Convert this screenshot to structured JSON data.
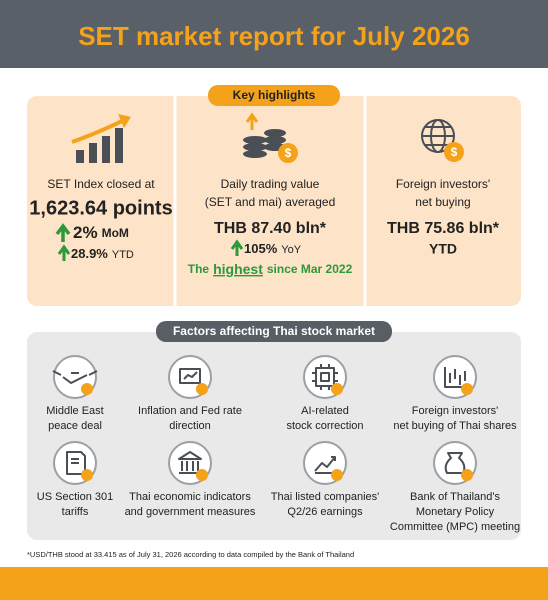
{
  "header": {
    "title": "SET market report for July 2026"
  },
  "highlights": {
    "label": "Key highlights",
    "items": [
      {
        "lines": [
          "SET Index closed at"
        ],
        "value": "1,623.64 points",
        "changes": [
          {
            "value": "2%",
            "unit": "MoM"
          },
          {
            "value": "28.9%",
            "unit": "YTD"
          }
        ]
      },
      {
        "lines": [
          "Daily trading value",
          "(SET and mai) averaged"
        ],
        "value": "THB 87.40 bln*",
        "changes": [
          {
            "value": "105%",
            "unit": "YoY"
          }
        ],
        "note": {
          "before": "The",
          "emphasis": "highest",
          "after": "since Mar 2022"
        }
      },
      {
        "lines": [
          "Foreign investors'",
          "net buying"
        ],
        "value": "THB 75.86 bln*",
        "period": "YTD"
      }
    ]
  },
  "factors": {
    "label": "Factors affecting Thai stock market",
    "items": [
      {
        "lines": [
          "Middle East",
          "peace deal"
        ]
      },
      {
        "lines": [
          "Inflation and Fed rate",
          "direction"
        ]
      },
      {
        "lines": [
          "AI-related",
          "stock correction"
        ]
      },
      {
        "lines": [
          "Foreign investors'",
          "net buying of Thai shares"
        ]
      },
      {
        "lines": [
          "US Section 301",
          "tariffs"
        ]
      },
      {
        "lines": [
          "Thai economic indicators",
          "and government measures"
        ]
      },
      {
        "lines": [
          "Thai listed companies'",
          "Q2/26 earnings"
        ]
      },
      {
        "lines": [
          "Bank of Thailand's",
          "Monetary Policy",
          "Committee (MPC) meeting"
        ]
      }
    ]
  },
  "footnote": "*USD/THB stood at 33.415 as of July 31, 2026 according to data compiled by the Bank of Thailand"
}
